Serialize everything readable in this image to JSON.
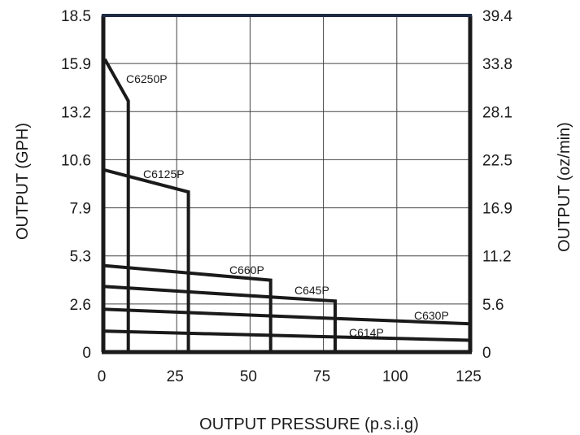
{
  "chart_data": {
    "type": "line",
    "xlabel": "OUTPUT PRESSURE  (p.s.i.g)",
    "ylabel_left": "OUTPUT  (GPH)",
    "ylabel_right": "OUTPUT  (oz/min)",
    "xlim": [
      0,
      125
    ],
    "ylim": [
      0,
      18.5
    ],
    "grid": true,
    "x_ticks": [
      "0",
      "25",
      "50",
      "75",
      "100",
      "125"
    ],
    "y_ticks_left": [
      "0",
      "2.6",
      "5.3",
      "7.9",
      "10.6",
      "13.2",
      "15.9",
      "18.5"
    ],
    "y_ticks_right": [
      "0",
      "5.6",
      "11.2",
      "16.9",
      "22.5",
      "28.1",
      "33.8",
      "39.4"
    ],
    "colors": {
      "line": "#1a1a1a",
      "top_border": "#1f2a44",
      "grid": "#444444"
    },
    "series": [
      {
        "name": "C6250P",
        "x": [
          0.5,
          8.5,
          8.5
        ],
        "y": [
          16.1,
          13.8,
          0
        ],
        "label": "C6250P"
      },
      {
        "name": "C6125P",
        "x": [
          0.5,
          29,
          29
        ],
        "y": [
          10.0,
          8.8,
          0
        ],
        "label": "C6125P"
      },
      {
        "name": "C660P",
        "x": [
          0.5,
          57,
          57
        ],
        "y": [
          4.75,
          3.95,
          0
        ],
        "label": "C660P"
      },
      {
        "name": "C645P",
        "x": [
          0.5,
          79,
          79
        ],
        "y": [
          3.6,
          2.8,
          0
        ],
        "label": "C645P"
      },
      {
        "name": "C630P",
        "x": [
          0.5,
          125
        ],
        "y": [
          2.35,
          1.55
        ],
        "label": "C630P"
      },
      {
        "name": "C614P",
        "x": [
          0.5,
          125
        ],
        "y": [
          1.15,
          0.65
        ],
        "label": "C614P"
      }
    ]
  }
}
